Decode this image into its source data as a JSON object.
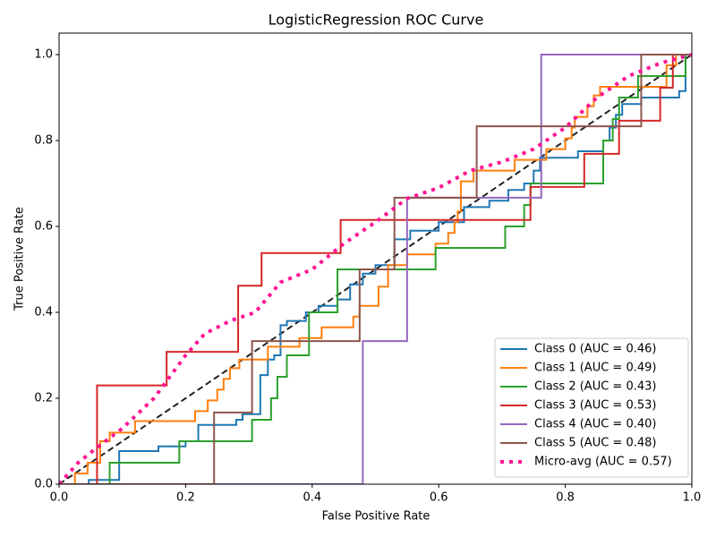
{
  "chart_data": {
    "type": "line",
    "title": "LogisticRegression ROC Curve",
    "x_label": "False Positive Rate",
    "y_label": "True Positive Rate",
    "xlim": [
      0,
      1
    ],
    "ylim": [
      0,
      1.05
    ],
    "xticks": [
      {
        "value": 0,
        "label": "0.0"
      },
      {
        "value": 0.2,
        "label": "0.2"
      },
      {
        "value": 0.4,
        "label": "0.4"
      },
      {
        "value": 0.6,
        "label": "0.6"
      },
      {
        "value": 0.8,
        "label": "0.8"
      },
      {
        "value": 1,
        "label": "1.0"
      }
    ],
    "yticks": [
      {
        "value": 0,
        "label": "0.0"
      },
      {
        "value": 0.2,
        "label": "0.2"
      },
      {
        "value": 0.4,
        "label": "0.4"
      },
      {
        "value": 0.6,
        "label": "0.6"
      },
      {
        "value": 0.8,
        "label": "0.8"
      },
      {
        "value": 1,
        "label": "1.0"
      }
    ],
    "legend": "lower right",
    "reference_line": {
      "color": "#222222",
      "x": [
        0,
        1
      ],
      "values": [
        0,
        1
      ]
    },
    "series": [
      {
        "name": "Class 0 (AUC = 0.46)",
        "color": "#1f77b4",
        "x": [
          0,
          0.047,
          0.047,
          0.095,
          0.095,
          0.157,
          0.157,
          0.2,
          0.2,
          0.22,
          0.22,
          0.28,
          0.28,
          0.29,
          0.29,
          0.318,
          0.318,
          0.33,
          0.33,
          0.34,
          0.34,
          0.35,
          0.35,
          0.36,
          0.36,
          0.39,
          0.39,
          0.41,
          0.41,
          0.44,
          0.44,
          0.46,
          0.46,
          0.48,
          0.48,
          0.5,
          0.5,
          0.53,
          0.53,
          0.555,
          0.555,
          0.6,
          0.6,
          0.64,
          0.64,
          0.68,
          0.68,
          0.71,
          0.71,
          0.735,
          0.735,
          0.75,
          0.75,
          0.76,
          0.76,
          0.82,
          0.82,
          0.86,
          0.86,
          0.87,
          0.87,
          0.88,
          0.88,
          0.89,
          0.89,
          0.92,
          0.92,
          0.98,
          0.98,
          0.99,
          0.99,
          1
        ],
        "values": [
          0,
          0,
          0.01,
          0.01,
          0.077,
          0.077,
          0.088,
          0.088,
          0.1,
          0.1,
          0.138,
          0.138,
          0.15,
          0.15,
          0.163,
          0.163,
          0.254,
          0.254,
          0.29,
          0.29,
          0.3,
          0.3,
          0.37,
          0.37,
          0.38,
          0.38,
          0.4,
          0.4,
          0.415,
          0.415,
          0.43,
          0.43,
          0.465,
          0.465,
          0.49,
          0.49,
          0.51,
          0.51,
          0.57,
          0.57,
          0.59,
          0.59,
          0.61,
          0.61,
          0.645,
          0.645,
          0.66,
          0.66,
          0.685,
          0.685,
          0.7,
          0.7,
          0.73,
          0.73,
          0.76,
          0.76,
          0.775,
          0.775,
          0.8,
          0.8,
          0.83,
          0.83,
          0.86,
          0.86,
          0.885,
          0.885,
          0.9,
          0.9,
          0.915,
          0.915,
          1,
          1
        ]
      },
      {
        "name": "Class 1 (AUC = 0.49)",
        "color": "#ff7f0e",
        "x": [
          0,
          0.025,
          0.025,
          0.045,
          0.045,
          0.065,
          0.065,
          0.08,
          0.08,
          0.12,
          0.12,
          0.215,
          0.215,
          0.235,
          0.235,
          0.25,
          0.25,
          0.26,
          0.26,
          0.27,
          0.27,
          0.285,
          0.285,
          0.33,
          0.33,
          0.38,
          0.38,
          0.415,
          0.415,
          0.465,
          0.465,
          0.475,
          0.475,
          0.505,
          0.505,
          0.52,
          0.52,
          0.55,
          0.55,
          0.595,
          0.595,
          0.615,
          0.615,
          0.625,
          0.625,
          0.63,
          0.63,
          0.635,
          0.635,
          0.655,
          0.655,
          0.72,
          0.72,
          0.77,
          0.77,
          0.8,
          0.8,
          0.81,
          0.81,
          0.815,
          0.815,
          0.835,
          0.835,
          0.845,
          0.845,
          0.855,
          0.855,
          0.96,
          0.96,
          0.975,
          0.975,
          1
        ],
        "values": [
          0,
          0,
          0.025,
          0.025,
          0.05,
          0.05,
          0.1,
          0.1,
          0.12,
          0.12,
          0.147,
          0.147,
          0.17,
          0.17,
          0.195,
          0.195,
          0.22,
          0.22,
          0.245,
          0.245,
          0.27,
          0.27,
          0.29,
          0.29,
          0.32,
          0.32,
          0.34,
          0.34,
          0.365,
          0.365,
          0.39,
          0.39,
          0.415,
          0.415,
          0.46,
          0.46,
          0.51,
          0.51,
          0.535,
          0.535,
          0.56,
          0.56,
          0.585,
          0.585,
          0.61,
          0.61,
          0.635,
          0.635,
          0.705,
          0.705,
          0.73,
          0.73,
          0.755,
          0.755,
          0.78,
          0.78,
          0.805,
          0.805,
          0.83,
          0.83,
          0.855,
          0.855,
          0.88,
          0.88,
          0.905,
          0.905,
          0.925,
          0.925,
          0.975,
          0.975,
          1,
          1
        ]
      },
      {
        "name": "Class 2 (AUC = 0.43)",
        "color": "#2ca02c",
        "x": [
          0,
          0.08,
          0.08,
          0.19,
          0.19,
          0.305,
          0.305,
          0.335,
          0.335,
          0.345,
          0.345,
          0.36,
          0.36,
          0.395,
          0.395,
          0.44,
          0.44,
          0.595,
          0.595,
          0.705,
          0.705,
          0.735,
          0.735,
          0.745,
          0.745,
          0.86,
          0.86,
          0.875,
          0.875,
          0.885,
          0.885,
          0.915,
          0.915,
          0.99,
          0.99,
          1
        ],
        "values": [
          0,
          0,
          0.05,
          0.05,
          0.1,
          0.1,
          0.15,
          0.15,
          0.2,
          0.2,
          0.25,
          0.25,
          0.3,
          0.3,
          0.4,
          0.4,
          0.5,
          0.5,
          0.55,
          0.55,
          0.6,
          0.6,
          0.65,
          0.65,
          0.7,
          0.7,
          0.8,
          0.8,
          0.85,
          0.85,
          0.9,
          0.9,
          0.95,
          0.95,
          1,
          1
        ]
      },
      {
        "name": "Class 3 (AUC = 0.53)",
        "color": "#d62728",
        "x": [
          0,
          0.06,
          0.06,
          0.17,
          0.17,
          0.283,
          0.283,
          0.32,
          0.32,
          0.445,
          0.445,
          0.745,
          0.745,
          0.83,
          0.83,
          0.885,
          0.885,
          0.95,
          0.95,
          0.97,
          0.97,
          1
        ],
        "values": [
          0,
          0,
          0.23,
          0.23,
          0.308,
          0.308,
          0.462,
          0.462,
          0.538,
          0.538,
          0.615,
          0.615,
          0.692,
          0.692,
          0.769,
          0.769,
          0.846,
          0.846,
          0.923,
          0.923,
          1,
          1
        ]
      },
      {
        "name": "Class 4 (AUC = 0.40)",
        "color": "#9467bd",
        "x": [
          0,
          0.48,
          0.48,
          0.55,
          0.55,
          0.762,
          0.762,
          1
        ],
        "values": [
          0,
          0,
          0.333,
          0.333,
          0.667,
          0.667,
          1,
          1
        ]
      },
      {
        "name": "Class 5 (AUC = 0.48)",
        "color": "#8c564b",
        "x": [
          0,
          0.245,
          0.245,
          0.305,
          0.305,
          0.475,
          0.475,
          0.53,
          0.53,
          0.66,
          0.66,
          0.92,
          0.92,
          1
        ],
        "values": [
          0,
          0,
          0.167,
          0.167,
          0.333,
          0.333,
          0.5,
          0.5,
          0.667,
          0.667,
          0.833,
          0.833,
          1,
          1
        ]
      },
      {
        "name": "Micro-avg (AUC = 0.57)",
        "color": "#ff1493",
        "dotted": true,
        "x": [
          0,
          0.03,
          0.06,
          0.1,
          0.15,
          0.17,
          0.2,
          0.23,
          0.27,
          0.31,
          0.35,
          0.4,
          0.45,
          0.5,
          0.55,
          0.6,
          0.65,
          0.7,
          0.75,
          0.8,
          0.85,
          0.9,
          0.95,
          1
        ],
        "values": [
          0,
          0.05,
          0.085,
          0.13,
          0.2,
          0.24,
          0.3,
          0.35,
          0.38,
          0.4,
          0.47,
          0.5,
          0.56,
          0.61,
          0.665,
          0.69,
          0.73,
          0.75,
          0.78,
          0.83,
          0.9,
          0.95,
          0.98,
          1
        ]
      }
    ]
  }
}
